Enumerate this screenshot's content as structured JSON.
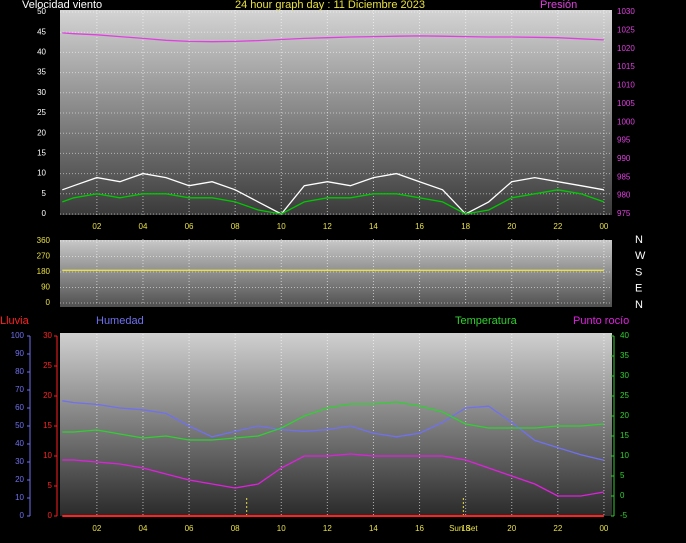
{
  "chart_data": [
    {
      "type": "line",
      "title": "24 hour graph day : 11 Diciembre 2023",
      "y_label": "Velocidad viento",
      "x": [
        0.5,
        1,
        2,
        3,
        4,
        5,
        6,
        7,
        8,
        9,
        10,
        11,
        12,
        13,
        14,
        15,
        16,
        17,
        18,
        19,
        20,
        21,
        22,
        23,
        24
      ],
      "xlim": [
        0.4,
        24.35
      ],
      "xticks": [
        {
          "value": 2,
          "label": "02"
        },
        {
          "value": 4,
          "label": "04"
        },
        {
          "value": 6,
          "label": "06"
        },
        {
          "value": 8,
          "label": "08"
        },
        10,
        12,
        14,
        16,
        18,
        20,
        22,
        {
          "value": 24,
          "label": "00"
        }
      ],
      "ylim": [
        0,
        50
      ],
      "yticks": [
        0,
        5,
        10,
        15,
        20,
        25,
        30,
        35,
        40,
        45,
        50
      ],
      "y2lim": [
        975,
        1030
      ],
      "y2ticks": [
        975,
        980,
        985,
        990,
        995,
        1000,
        1005,
        1010,
        1015,
        1020,
        1025,
        1030
      ],
      "series": [
        {
          "color": "#ffffff",
          "values": [
            6,
            7,
            9,
            8,
            10,
            9,
            7,
            8,
            6,
            3,
            0,
            7,
            8,
            7,
            9,
            10,
            8,
            6,
            0,
            3,
            8,
            9,
            8,
            7,
            6
          ]
        },
        {
          "color": "#00c800",
          "values": [
            3,
            4,
            5,
            4,
            5,
            5,
            4,
            4,
            3,
            1,
            0,
            3,
            4,
            4,
            5,
            5,
            4,
            3,
            0,
            1,
            4,
            5,
            6,
            5,
            3
          ]
        },
        {
          "name": "Presión",
          "color": "#e040e0",
          "axis": "y2",
          "values": [
            1024.3,
            1024.1,
            1023.8,
            1023.3,
            1022.8,
            1022.3,
            1022.0,
            1021.9,
            1022.0,
            1022.2,
            1022.5,
            1022.8,
            1023.0,
            1023.2,
            1023.3,
            1023.4,
            1023.5,
            1023.4,
            1023.3,
            1023.2,
            1023.2,
            1023.1,
            1023.0,
            1022.7,
            1022.4
          ]
        }
      ]
    },
    {
      "type": "line",
      "x": [
        0.5,
        1,
        2,
        3,
        4,
        5,
        6,
        7,
        8,
        9,
        10,
        11,
        12,
        13,
        14,
        15,
        16,
        17,
        18,
        19,
        20,
        21,
        22,
        23,
        24
      ],
      "xlim": [
        0.4,
        24.35
      ],
      "xticks": [
        2,
        4,
        6,
        8,
        10,
        12,
        14,
        16,
        18,
        20,
        22,
        24
      ],
      "ylim": [
        0,
        360
      ],
      "yticks": [
        0,
        90,
        180,
        270,
        360
      ],
      "compass": [
        "N",
        "W",
        "S",
        "E",
        "N"
      ],
      "series": [
        {
          "color": "#e8e040",
          "values": [
            190,
            190,
            190,
            190,
            190,
            190,
            190,
            190,
            190,
            190,
            190,
            190,
            190,
            190,
            190,
            190,
            190,
            190,
            190,
            190,
            190,
            190,
            190,
            190,
            190
          ]
        }
      ]
    },
    {
      "type": "line",
      "x": [
        0.5,
        1,
        2,
        3,
        4,
        5,
        6,
        7,
        8,
        9,
        10,
        11,
        12,
        13,
        14,
        15,
        16,
        17,
        18,
        19,
        20,
        21,
        22,
        23,
        24
      ],
      "xlim": [
        0.4,
        24.35
      ],
      "xticks": [
        {
          "value": 2,
          "label": "02"
        },
        {
          "value": 4,
          "label": "04"
        },
        {
          "value": 6,
          "label": "06"
        },
        {
          "value": 8,
          "label": "08"
        },
        10,
        12,
        14,
        16,
        18,
        20,
        22,
        {
          "value": 24,
          "label": "00"
        }
      ],
      "ylim": [
        0,
        100
      ],
      "yticks": [
        0,
        10,
        20,
        30,
        40,
        50,
        60,
        70,
        80,
        90,
        100
      ],
      "rainlim": [
        0,
        30
      ],
      "rainticks": [
        0,
        5,
        10,
        15,
        20,
        25,
        30
      ],
      "y2lim": [
        -5,
        40
      ],
      "y2ticks": [
        -5,
        0,
        5,
        10,
        15,
        20,
        25,
        30,
        35,
        40
      ],
      "sun": [
        {
          "x": 8.5
        },
        {
          "x": 17.9,
          "label": "Sun Set"
        }
      ],
      "series": [
        {
          "name": "Lluvia",
          "color": "#ff2020",
          "axis": "rain",
          "values": [
            0,
            0,
            0,
            0,
            0,
            0,
            0,
            0,
            0,
            0,
            0,
            0,
            0,
            0,
            0,
            0,
            0,
            0,
            0,
            0,
            0,
            0,
            0,
            0,
            0
          ]
        },
        {
          "name": "Humedad",
          "color": "#7070f0",
          "axis": "y",
          "values": [
            64,
            63,
            62,
            60,
            59,
            57,
            50,
            44,
            47,
            50,
            48,
            47,
            48,
            50,
            46,
            44,
            46,
            52,
            60,
            61,
            52,
            42,
            38,
            34,
            31
          ]
        },
        {
          "name": "Temperatura",
          "color": "#30d030",
          "axis": "y2",
          "values": [
            16,
            16,
            16.5,
            15.5,
            14.5,
            15,
            14,
            14,
            14.5,
            15,
            17,
            20,
            22,
            23,
            23,
            23.5,
            22.5,
            21,
            18,
            17,
            17,
            17,
            17.5,
            17.5,
            18
          ]
        },
        {
          "name": "Punto rocío",
          "color": "#e020e0",
          "axis": "y2",
          "values": [
            9,
            9,
            8.5,
            8,
            7,
            5.5,
            4,
            3,
            2,
            3,
            7,
            10,
            10,
            10.5,
            10,
            10,
            10,
            10,
            9,
            7,
            5,
            3,
            0,
            0,
            1
          ]
        }
      ]
    }
  ]
}
